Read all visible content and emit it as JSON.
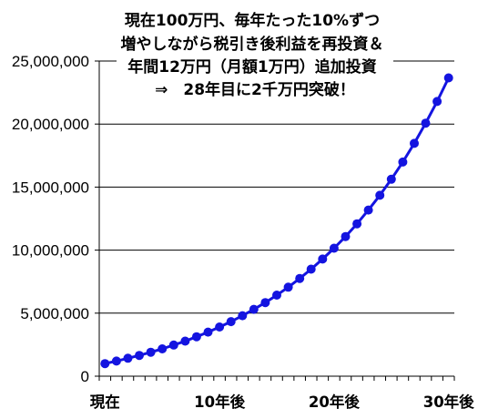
{
  "chart_data": {
    "type": "line",
    "title_lines": [
      "現在100万円、毎年たった10%ずつ",
      "増やしながら税引き後利益を再投資＆",
      "年間12万円（月額1万円）追加投資",
      "⇒　28年目に2千万円突破！"
    ],
    "x": [
      0,
      1,
      2,
      3,
      4,
      5,
      6,
      7,
      8,
      9,
      10,
      11,
      12,
      13,
      14,
      15,
      16,
      17,
      18,
      19,
      20,
      21,
      22,
      23,
      24,
      25,
      26,
      27,
      28,
      29,
      30
    ],
    "x_tick_labels": [
      {
        "x": 0,
        "label": "現在"
      },
      {
        "x": 10,
        "label": "10年後"
      },
      {
        "x": 20,
        "label": "20年後"
      },
      {
        "x": 30,
        "label": "30年後"
      }
    ],
    "y_ticks": [
      0,
      5000000,
      10000000,
      15000000,
      20000000,
      25000000
    ],
    "y_tick_labels": [
      "0",
      "5,000,000",
      "10,000,000",
      "15,000,000",
      "20,000,000",
      "25,000,000"
    ],
    "ylim": [
      0,
      25000000
    ],
    "grid": true,
    "legend": "none",
    "series": [
      {
        "color": "#1414E0",
        "marker": "circle",
        "values": [
          1000000,
          1200000,
          1420000,
          1650000,
          1900000,
          2170000,
          2470000,
          2780000,
          3130000,
          3500000,
          3900000,
          4330000,
          4800000,
          5300000,
          5840000,
          6430000,
          7060000,
          7750000,
          8490000,
          9290000,
          10150000,
          11080000,
          12090000,
          13180000,
          14350000,
          15620000,
          16990000,
          18470000,
          20070000,
          21790000,
          23660000
        ]
      }
    ]
  }
}
